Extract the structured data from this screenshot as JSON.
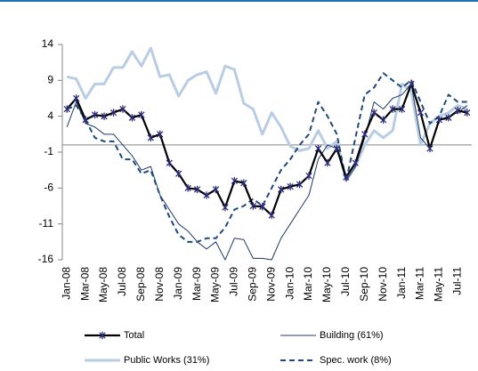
{
  "chart_data": {
    "type": "line",
    "categories": [
      "Jan-08",
      null,
      "Mar-08",
      null,
      "May-08",
      null,
      "Jul-08",
      null,
      "Sep-08",
      null,
      "Nov-08",
      null,
      "Jan-09",
      null,
      "Mar-09",
      null,
      "May-09",
      null,
      "Jul-09",
      null,
      "Sep-09",
      null,
      "Nov-09",
      null,
      "Jan-10",
      null,
      "Mar-10",
      null,
      "May-10",
      null,
      "Jul-10",
      null,
      "Sep-10",
      null,
      "Nov-10",
      null,
      "Jan-11",
      null,
      "Mar-11",
      null,
      "May-11",
      null,
      "Jul-11",
      null
    ],
    "series": [
      {
        "name": "Total",
        "color": "#000000",
        "marker_color": "#2e2e7a",
        "style": "solid",
        "width": 2.2,
        "marker": true,
        "values": [
          5,
          6.5,
          3.5,
          4.2,
          4,
          4.5,
          5,
          3.8,
          4.2,
          1,
          1.5,
          -2.5,
          -4,
          -6,
          -6.2,
          -7,
          -6.2,
          -8.7,
          -5,
          -5.3,
          -8.5,
          -8.6,
          -9.8,
          -6.2,
          -5.8,
          -5.5,
          -4.3,
          -0.5,
          -2.5,
          -0.5,
          -4.5,
          -2.5,
          1.5,
          4.5,
          3.5,
          5,
          5,
          8.5,
          4.5,
          -0.5,
          3.5,
          3.8,
          4.8,
          4.5
        ]
      },
      {
        "name": "Building (61%)",
        "color": "#1f3864",
        "style": "solid",
        "width": 1,
        "marker": false,
        "values": [
          2.5,
          6,
          3,
          2.5,
          1.5,
          1.5,
          0,
          -1.5,
          -3.5,
          -3,
          -7,
          -9,
          -11,
          -12,
          -13.5,
          -14.5,
          -13.5,
          -16,
          -13,
          -13.2,
          -15.8,
          -15.8,
          -16,
          -13,
          -11,
          -9,
          -7,
          -2,
          0,
          -0.5,
          -5,
          -3,
          1,
          6,
          5,
          6.5,
          7,
          8.5,
          1,
          -0.5,
          3.5,
          4,
          4.5,
          5.5
        ]
      },
      {
        "name": "Public Works (31%)",
        "color": "#b8cce4",
        "style": "solid",
        "width": 3,
        "marker": false,
        "values": [
          9.5,
          9.2,
          6.5,
          8.5,
          8.5,
          10.8,
          10.8,
          13,
          11,
          13.5,
          9.5,
          9.8,
          6.8,
          9,
          9.8,
          10.2,
          7.2,
          11,
          10.5,
          5.8,
          5,
          1.5,
          4.5,
          2.5,
          -0.2,
          -0.8,
          -0.5,
          2,
          -0.5,
          0.5,
          -5,
          -3,
          0,
          2,
          1,
          2,
          8.5,
          7.5,
          0,
          3,
          4,
          4.5,
          5.5,
          5
        ]
      },
      {
        "name": "Spec. work (8%)",
        "color": "#1f497d",
        "style": "dashed",
        "width": 2,
        "marker": false,
        "values": [
          5,
          5.5,
          3.5,
          1,
          0.5,
          0.5,
          -2,
          -2,
          -4,
          -3.5,
          -7,
          -10,
          -12.5,
          -13.5,
          -13.5,
          -13,
          -13,
          -11.5,
          -9,
          -8.5,
          -7.5,
          -8.5,
          -6,
          -3.5,
          -2,
          0,
          1.5,
          6,
          4,
          1.5,
          -5,
          1,
          7,
          8,
          10,
          9,
          8,
          9,
          6,
          3,
          4,
          7,
          6,
          6
        ]
      }
    ],
    "ylim": [
      -16,
      14
    ],
    "yticks": [
      14,
      9,
      4,
      -1,
      -6,
      -11,
      -16
    ],
    "grid": false
  }
}
